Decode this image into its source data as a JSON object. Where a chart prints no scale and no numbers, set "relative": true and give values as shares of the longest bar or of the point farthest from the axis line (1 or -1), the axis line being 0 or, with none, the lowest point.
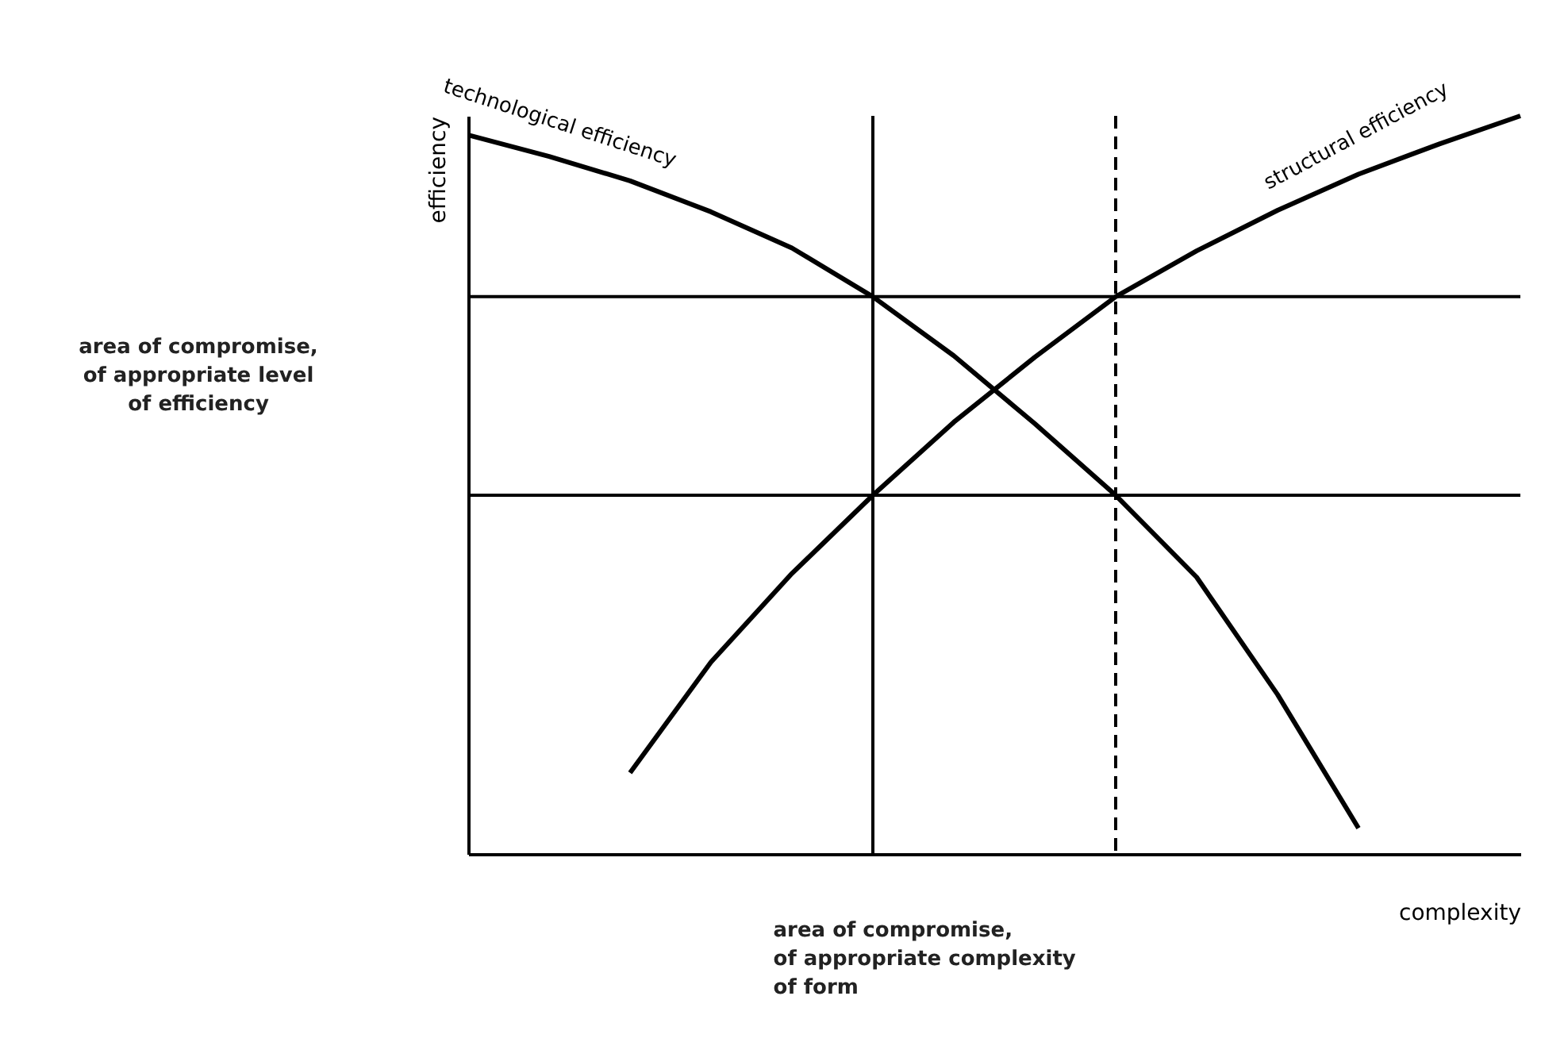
{
  "chart_data": {
    "type": "line",
    "relative": true,
    "xlabel": "complexity",
    "ylabel": "efficiency",
    "marker": "none",
    "line_style": "solid",
    "categories": [
      null,
      null,
      null,
      null,
      null,
      null,
      null,
      null,
      null,
      null,
      null,
      null,
      null,
      null
    ],
    "series": [
      {
        "name": "technological efficiency",
        "color": "#000000",
        "values": [
          0.974,
          0.945,
          0.912,
          0.87,
          0.821,
          0.755,
          0.675,
          0.583,
          0.486,
          0.375,
          0.216,
          0.035,
          null,
          null
        ]
      },
      {
        "name": "structural efficiency",
        "color": "#000000",
        "values": [
          null,
          null,
          0.11,
          0.26,
          0.38,
          0.486,
          0.585,
          0.673,
          0.755,
          0.817,
          0.872,
          0.921,
          0.962,
          1.0
        ]
      }
    ],
    "ref_lines": [
      {
        "axis": "y",
        "value": 0.755,
        "label": null,
        "color": "#000000",
        "line_style": "solid"
      },
      {
        "axis": "y",
        "value": 0.486,
        "label": null,
        "color": "#000000",
        "line_style": "solid"
      }
    ],
    "annotations": [
      "area of compromise,\nof appropriate level\nof efficiency",
      "area of compromise,\nof appropriate complexity\nof form"
    ]
  }
}
